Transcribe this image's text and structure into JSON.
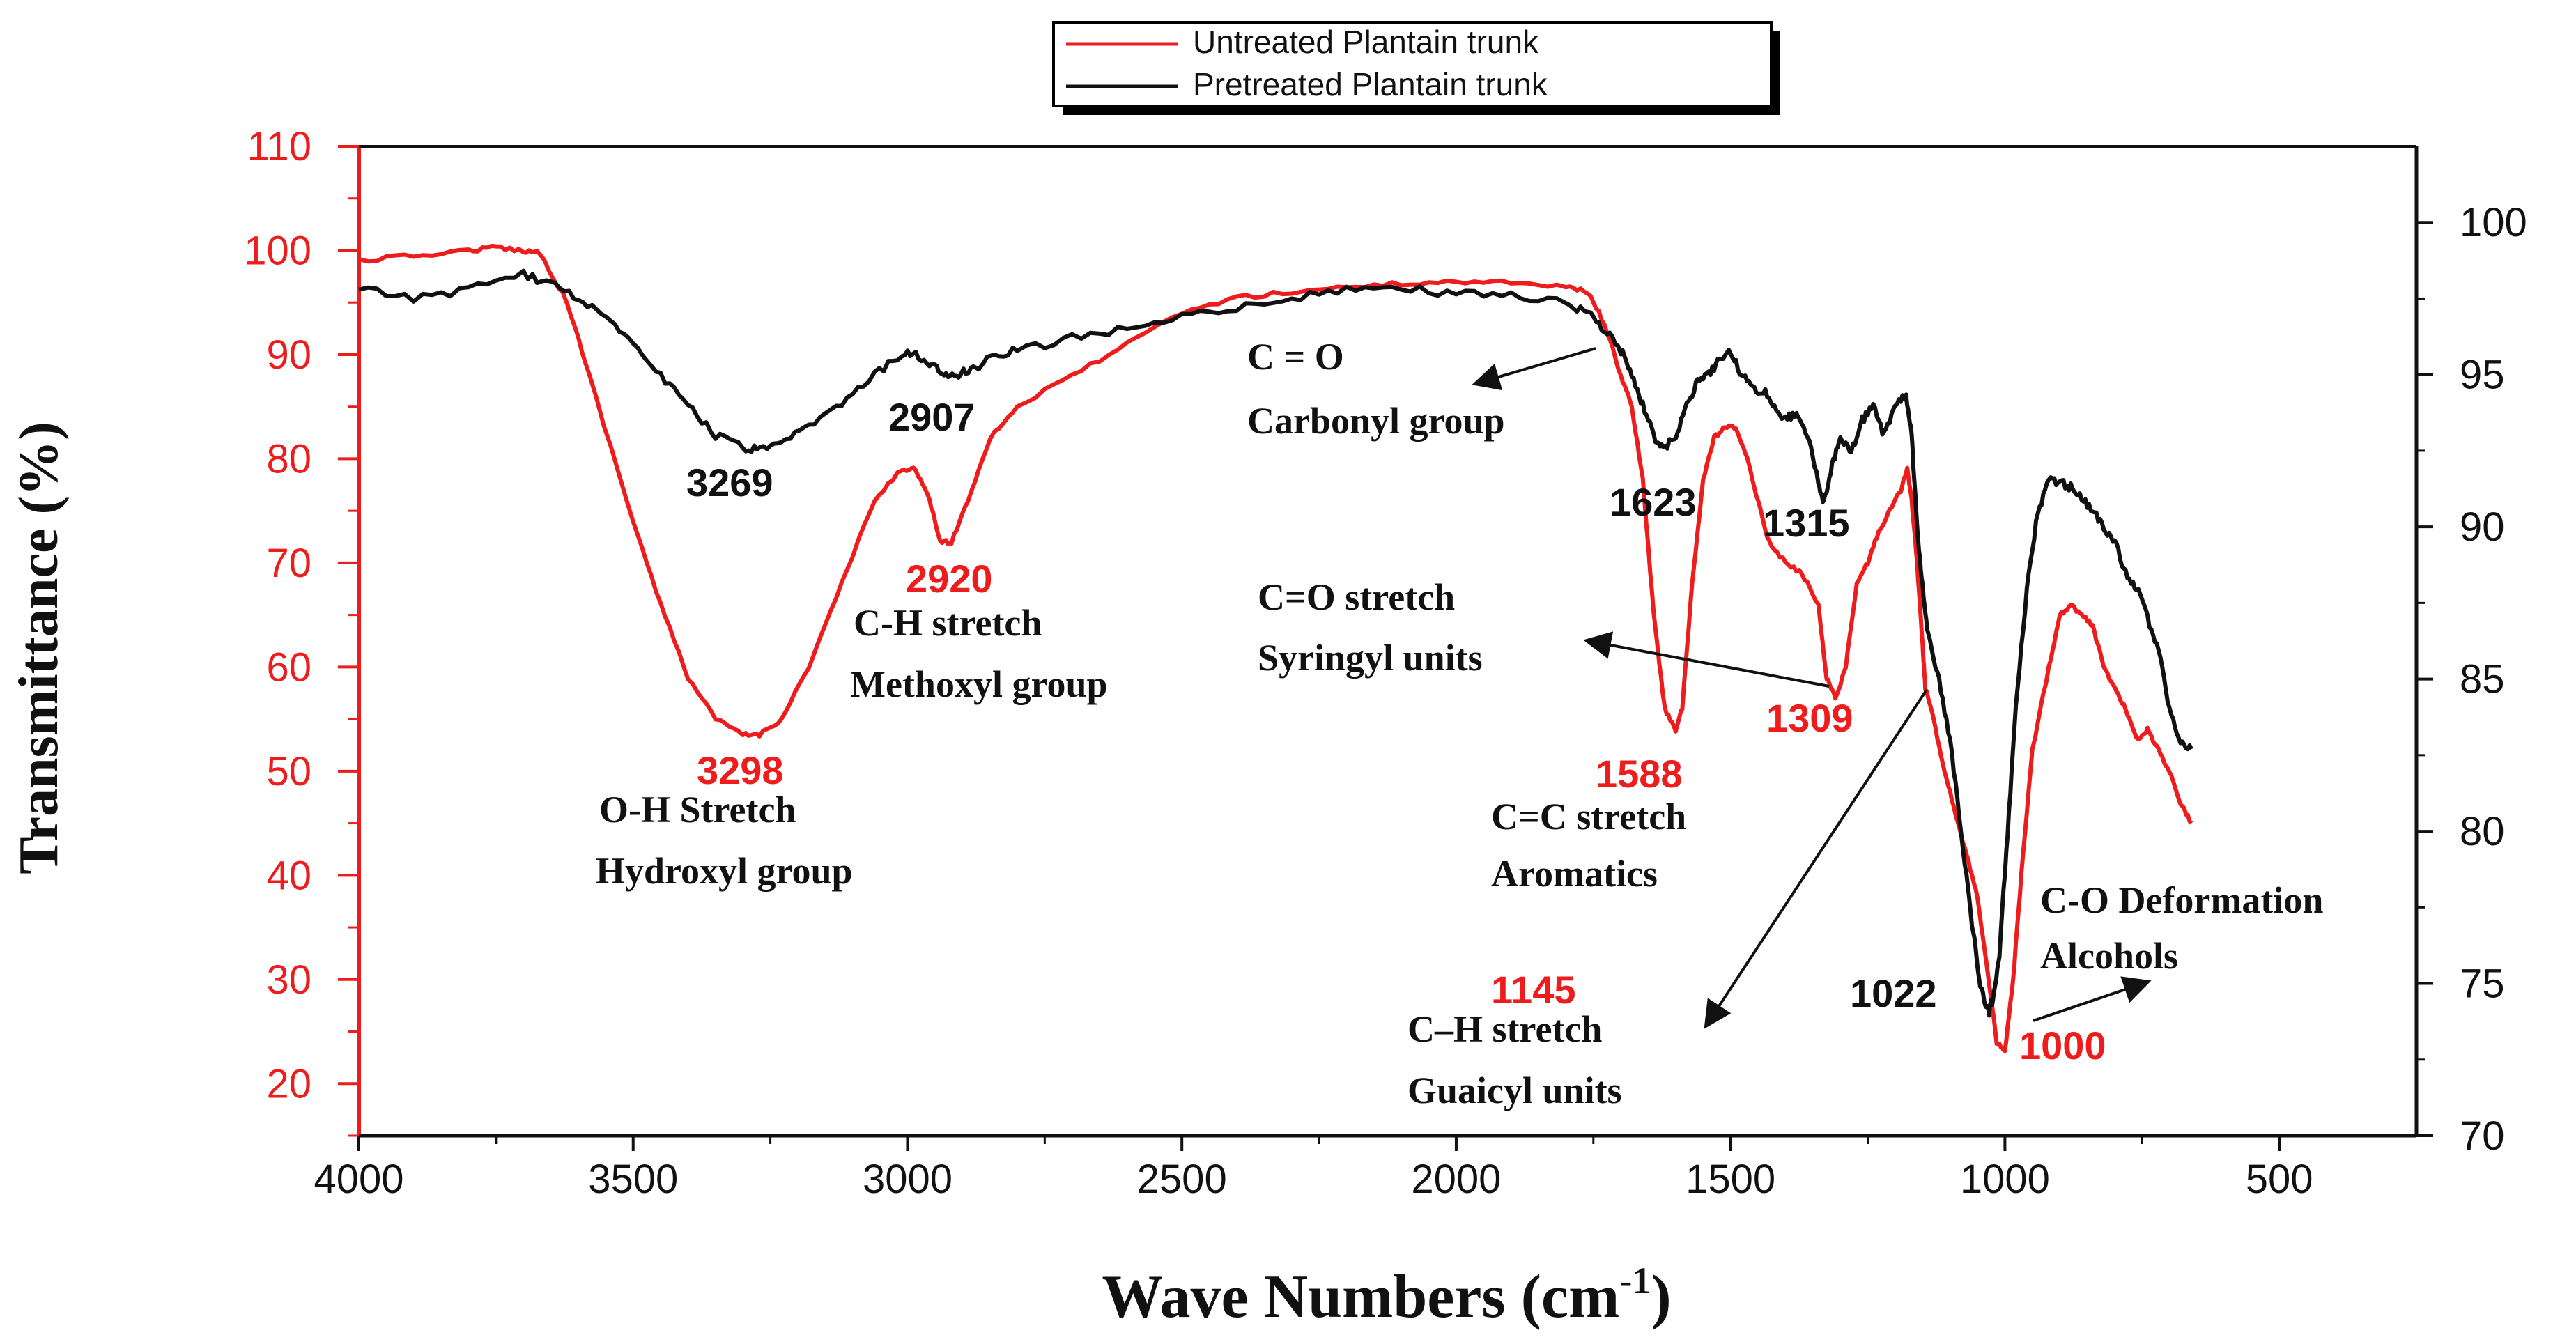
{
  "chart_data": {
    "type": "line",
    "title": "",
    "xlabel": "Wave Numbers (cm",
    "xlabel_sup": "-1",
    "xlabel_close": ")",
    "ylabel": "Transmittance (%)",
    "xlim": [
      4000,
      250
    ],
    "ylim_left": [
      15,
      110
    ],
    "ylim_right": [
      70,
      102.5
    ],
    "x_ticks": [
      4000,
      3500,
      3000,
      2500,
      2000,
      1500,
      1000,
      500
    ],
    "y_left_ticks": [
      20,
      30,
      40,
      50,
      60,
      70,
      80,
      90,
      100,
      110
    ],
    "y_right_ticks": [
      70,
      75,
      80,
      85,
      90,
      95,
      100
    ],
    "colors": {
      "untreated": "#ee1c1c",
      "pretreated": "#111111",
      "left_axis": "#ee1c1c",
      "right_axis": "#111111"
    },
    "legend": {
      "placement": "top-center"
    },
    "series": [
      {
        "name": "Untreated Plantain trunk",
        "axis": "left",
        "color": "#ee1c1c",
        "x": [
          4000,
          3900,
          3800,
          3750,
          3700,
          3670,
          3620,
          3580,
          3500,
          3450,
          3400,
          3350,
          3300,
          3270,
          3230,
          3180,
          3120,
          3060,
          3010,
          2985,
          2960,
          2940,
          2920,
          2890,
          2850,
          2800,
          2700,
          2600,
          2500,
          2400,
          2300,
          2200,
          2100,
          2000,
          1900,
          1800,
          1760,
          1730,
          1700,
          1680,
          1660,
          1640,
          1620,
          1600,
          1588,
          1570,
          1550,
          1530,
          1510,
          1490,
          1470,
          1450,
          1430,
          1400,
          1370,
          1340,
          1325,
          1309,
          1290,
          1270,
          1250,
          1230,
          1210,
          1190,
          1178,
          1170,
          1160,
          1150,
          1145,
          1130,
          1110,
          1090,
          1070,
          1050,
          1030,
          1015,
          1000,
          985,
          970,
          950,
          920,
          900,
          880,
          860,
          840,
          820,
          800,
          780,
          760,
          740,
          720,
          700,
          680,
          660
        ],
        "y": [
          99,
          99.5,
          100,
          100.3,
          100,
          99.8,
          95,
          88,
          74,
          66,
          59,
          55,
          53.5,
          53.5,
          55,
          60,
          68,
          76,
          79,
          79,
          76,
          72,
          72,
          76,
          82,
          85,
          88,
          91,
          94,
          95.5,
          96,
          96.5,
          96.8,
          97,
          97,
          96.5,
          96,
          93,
          88,
          85,
          78,
          65,
          56,
          54,
          56,
          68,
          78,
          82,
          83,
          83,
          80,
          76,
          72,
          70,
          69,
          66,
          59,
          57,
          60,
          68,
          70,
          73,
          75,
          77,
          79,
          76,
          70,
          62,
          58,
          55,
          50,
          46,
          42,
          38,
          30,
          24,
          23,
          30,
          40,
          52,
          60,
          65,
          66,
          65,
          64,
          60,
          58,
          56,
          53,
          54,
          52,
          50,
          47,
          45
        ]
      },
      {
        "name": "Pretreated Plantain trunk",
        "axis": "right",
        "color": "#111111",
        "x": [
          4000,
          3900,
          3800,
          3700,
          3650,
          3600,
          3550,
          3500,
          3450,
          3400,
          3350,
          3300,
          3269,
          3230,
          3180,
          3120,
          3060,
          3010,
          2980,
          2950,
          2930,
          2907,
          2880,
          2850,
          2800,
          2700,
          2600,
          2500,
          2400,
          2300,
          2200,
          2100,
          2000,
          1900,
          1800,
          1760,
          1730,
          1700,
          1680,
          1660,
          1640,
          1623,
          1600,
          1580,
          1560,
          1540,
          1520,
          1500,
          1480,
          1460,
          1440,
          1420,
          1400,
          1380,
          1360,
          1340,
          1330,
          1315,
          1300,
          1280,
          1260,
          1240,
          1220,
          1200,
          1180,
          1170,
          1160,
          1150,
          1140,
          1120,
          1100,
          1080,
          1060,
          1045,
          1030,
          1022,
          1010,
          995,
          980,
          960,
          940,
          920,
          900,
          880,
          860,
          840,
          820,
          800,
          780,
          760,
          740,
          720,
          700,
          680,
          660
        ],
        "y": [
          97.8,
          97.5,
          97.8,
          98.3,
          98,
          97.5,
          97,
          96,
          95,
          94,
          93,
          92.6,
          92.5,
          92.7,
          93.3,
          94,
          95,
          95.7,
          95.6,
          95.2,
          95.0,
          95,
          95.2,
          95.5,
          95.8,
          96.2,
          96.5,
          97,
          97.2,
          97.5,
          97.8,
          97.8,
          97.7,
          97.6,
          97.4,
          97,
          96.5,
          95.8,
          95,
          94,
          93,
          92.5,
          93,
          94,
          94.8,
          95,
          95.5,
          95.8,
          95,
          94.5,
          94.5,
          94,
          93.5,
          93.8,
          93,
          91.5,
          90.8,
          92,
          93,
          92.5,
          93.5,
          94,
          93,
          94,
          94.3,
          93,
          90,
          88,
          86.5,
          85,
          83,
          80,
          77,
          75,
          74,
          74.5,
          76,
          80,
          84,
          88,
          90.5,
          91.5,
          91.5,
          91.3,
          91,
          90.5,
          90,
          89.5,
          88.5,
          88,
          87,
          86,
          84,
          83,
          82.7
        ]
      }
    ],
    "annotations": [
      {
        "id": "a3298",
        "text": "3298",
        "color": "red"
      },
      {
        "id": "a3269",
        "text": "3269",
        "color": "black"
      },
      {
        "id": "a2920",
        "text": "2920",
        "color": "red"
      },
      {
        "id": "a2907",
        "text": "2907",
        "color": "black"
      },
      {
        "id": "a1623",
        "text": "1623",
        "color": "black"
      },
      {
        "id": "a1315",
        "text": "1315",
        "color": "black"
      },
      {
        "id": "a1309",
        "text": "1309",
        "color": "red"
      },
      {
        "id": "a1588",
        "text": "1588",
        "color": "red"
      },
      {
        "id": "a1145",
        "text": "1145",
        "color": "red"
      },
      {
        "id": "a1022",
        "text": "1022",
        "color": "black"
      },
      {
        "id": "a1000",
        "text": "1000",
        "color": "red"
      },
      {
        "id": "oh1",
        "text": "O-H  Stretch",
        "color": "black"
      },
      {
        "id": "oh2",
        "text": "Hydroxyl group",
        "color": "black"
      },
      {
        "id": "ch1",
        "text": "C-H  stretch",
        "color": "black"
      },
      {
        "id": "ch2",
        "text": "Methoxyl group",
        "color": "black"
      },
      {
        "id": "co1",
        "text": "C = O",
        "color": "black"
      },
      {
        "id": "co2",
        "text": "Carbonyl group",
        "color": "black"
      },
      {
        "id": "cos1",
        "text": "C=O  stretch",
        "color": "black"
      },
      {
        "id": "cos2",
        "text": "Syringyl units",
        "color": "black"
      },
      {
        "id": "cc1",
        "text": "C=C  stretch",
        "color": "black"
      },
      {
        "id": "cc2",
        "text": "Aromatics",
        "color": "black"
      },
      {
        "id": "chg1",
        "text": "C–H  stretch",
        "color": "black"
      },
      {
        "id": "chg2",
        "text": "Guaicyl units",
        "color": "black"
      },
      {
        "id": "cod1",
        "text": "C-O Deformation",
        "color": "black"
      },
      {
        "id": "cod2",
        "text": "Alcohols",
        "color": "black"
      }
    ]
  }
}
